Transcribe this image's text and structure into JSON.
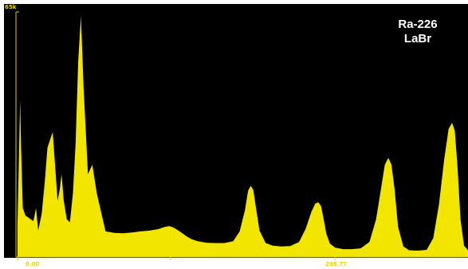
{
  "colors": {
    "background": "#000000",
    "fill": "#f2e600",
    "axis": "#d8d000"
  },
  "chart_data": {
    "type": "area",
    "title": "Ra-226",
    "subtitle": "LaBr",
    "ylim": [
      0,
      65000
    ],
    "y_tick_labels": [
      "65k"
    ],
    "x_tick_labels": [
      "0.00",
      "298.77"
    ],
    "xlim": [
      0,
      1024
    ],
    "grid": false,
    "series": [
      {
        "x": [
          0,
          6,
          8,
          12,
          18,
          30,
          36,
          42,
          47,
          55,
          62,
          68,
          80,
          91,
          96,
          100,
          105,
          112,
          119,
          126,
          132,
          138,
          144,
          150,
          160,
          170,
          180,
          200,
          220,
          240,
          260,
          280,
          300,
          320,
          335,
          345,
          353,
          362,
          372,
          384,
          396,
          410,
          430,
          450,
          470,
          490,
          505,
          517,
          524,
          530,
          536,
          542,
          550,
          564,
          580,
          600,
          620,
          640,
          655,
          668,
          677,
          684,
          690,
          696,
          702,
          710,
          722,
          740,
          760,
          780,
          800,
          815,
          826,
          835,
          843,
          850,
          857,
          865,
          877,
          890,
          910,
          930,
          945,
          958,
          970,
          980,
          988,
          994,
          1000,
          1007,
          1015,
          1024
        ],
        "y": [
          9000,
          41800,
          29000,
          13000,
          11000,
          10000,
          9500,
          13000,
          7000,
          11500,
          20000,
          29000,
          33200,
          15000,
          18000,
          22000,
          15000,
          10000,
          9200,
          17000,
          30000,
          52000,
          64000,
          45000,
          22000,
          24500,
          17000,
          6800,
          6400,
          6300,
          6500,
          6800,
          7000,
          7400,
          8000,
          8200,
          7900,
          7300,
          6500,
          5500,
          4700,
          4200,
          3800,
          3700,
          3700,
          4200,
          6800,
          12500,
          17500,
          18900,
          17800,
          13000,
          7000,
          3700,
          3000,
          2800,
          2900,
          4000,
          7500,
          12000,
          14200,
          14500,
          13500,
          10000,
          6200,
          3600,
          2500,
          2100,
          2100,
          2300,
          4000,
          10000,
          18000,
          24500,
          26300,
          24500,
          18000,
          8000,
          2800,
          1800,
          1700,
          1900,
          5000,
          14000,
          26000,
          34000,
          35600,
          33500,
          24000,
          10000,
          3000,
          1800
        ]
      }
    ]
  }
}
